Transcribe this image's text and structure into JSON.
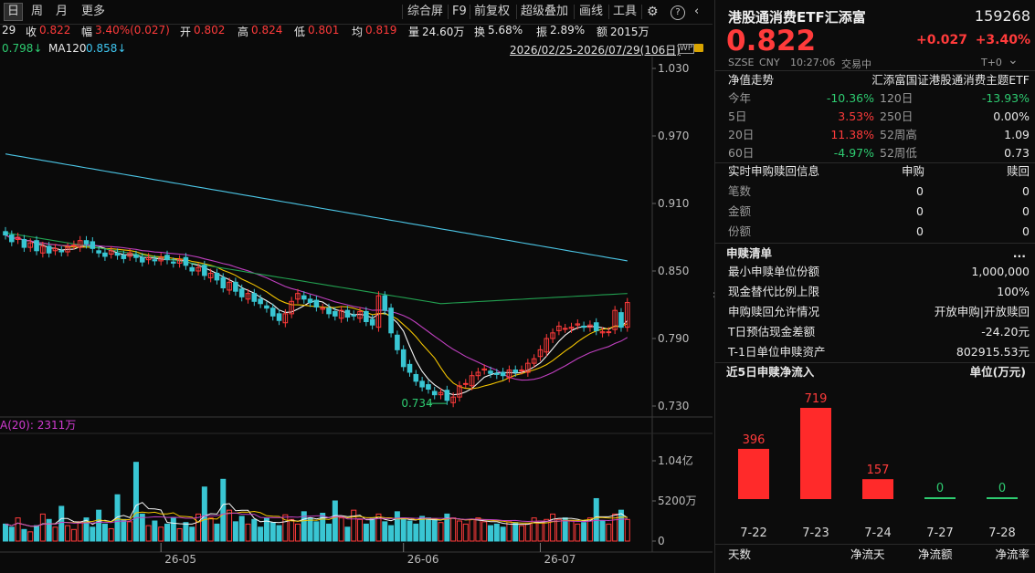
{
  "toolbar": {
    "periods": [
      "日",
      "周",
      "月",
      "更多"
    ],
    "tools": [
      "综合屏",
      "F9",
      "前复权",
      "超级叠加",
      "画线",
      "工具"
    ]
  },
  "quote": {
    "prefix": "29",
    "close_label": "收",
    "close": "0.822",
    "amp_label": "幅",
    "change": "3.40%(0.027)",
    "open_label": "开",
    "open": "0.802",
    "high_label": "高",
    "high": "0.824",
    "low_label": "低",
    "low": "0.801",
    "avg_label": "均",
    "avg": "0.819",
    "vol_label": "量",
    "vol": "24.60万",
    "turnover_label": "换",
    "turnover": "5.68%",
    "swing_label": "振",
    "swing": "2.89%",
    "amount_label": "额",
    "amount": "2015万"
  },
  "ma": {
    "ma_partial": "0.798↓",
    "ma120_label": "MA120",
    "ma120": "0.858↓",
    "range": "2026/02/25-2026/07/29(106日)"
  },
  "price_axis": [
    "1.030",
    "0.970",
    "0.910",
    "0.850",
    "0.790",
    "0.730"
  ],
  "low_marker": "0.734",
  "volume": {
    "ma_label": "A(20): 2311万",
    "axis": [
      "1.04亿",
      "5200万",
      "0"
    ],
    "months": [
      "26-05",
      "26-06",
      "26-07"
    ]
  },
  "panel": {
    "name": "港股通消费ETF汇添富",
    "code": "159268",
    "price": "0.822",
    "change": "+0.027",
    "change_pct": "+3.40%",
    "market": "SZSE",
    "currency": "CNY",
    "time": "10:27:06",
    "status": "交易中",
    "t0": "T+0",
    "nav_title": "净值走势",
    "nav_fund": "汇添富国证港股通消费主题ETF",
    "perf": [
      {
        "l1": "今年",
        "v1": "-10.36%",
        "c1": "green",
        "l2": "120日",
        "v2": "-13.93%",
        "c2": "green"
      },
      {
        "l1": "5日",
        "v1": "3.53%",
        "c1": "red",
        "l2": "250日",
        "v2": "0.00%",
        "c2": "white"
      },
      {
        "l1": "20日",
        "v1": "11.38%",
        "c1": "red",
        "l2": "52周高",
        "v2": "1.09",
        "c2": "white"
      },
      {
        "l1": "60日",
        "v1": "-4.97%",
        "c1": "green",
        "l2": "52周低",
        "v2": "0.73",
        "c2": "white"
      }
    ],
    "realtime_title": "实时申购赎回信息",
    "realtime_cols": [
      "申购",
      "赎回"
    ],
    "realtime": [
      {
        "label": "笔数",
        "sub": "0",
        "red": "0"
      },
      {
        "label": "金额",
        "sub": "0",
        "red": "0"
      },
      {
        "label": "份额",
        "sub": "0",
        "red": "0"
      }
    ],
    "list_title": "申赎清单",
    "more": "...",
    "list": [
      {
        "label": "最小申赎单位份额",
        "value": "1,000,000"
      },
      {
        "label": "现金替代比例上限",
        "value": "100%"
      },
      {
        "label": "申购赎回允许情况",
        "value": "开放申购|开放赎回"
      },
      {
        "label": "T日预估现金差额",
        "value": "-24.20元"
      },
      {
        "label": "T-1日单位申赎资产",
        "value": "802915.53元"
      }
    ],
    "flow_title": "近5日申赎净流入",
    "flow_unit": "单位(万元)",
    "flow": [
      {
        "date": "7-22",
        "value": 396
      },
      {
        "date": "7-23",
        "value": 719
      },
      {
        "date": "7-24",
        "value": 157
      },
      {
        "date": "7-27",
        "value": 0
      },
      {
        "date": "7-28",
        "value": 0
      }
    ],
    "table_cols": [
      "天数",
      "净流天",
      "净流额",
      "净流率"
    ]
  },
  "colors": {
    "up": "#ff3b3b",
    "down": "#2ecc71",
    "cyan": "#29c4d2",
    "bg": "#0a0a0a"
  }
}
